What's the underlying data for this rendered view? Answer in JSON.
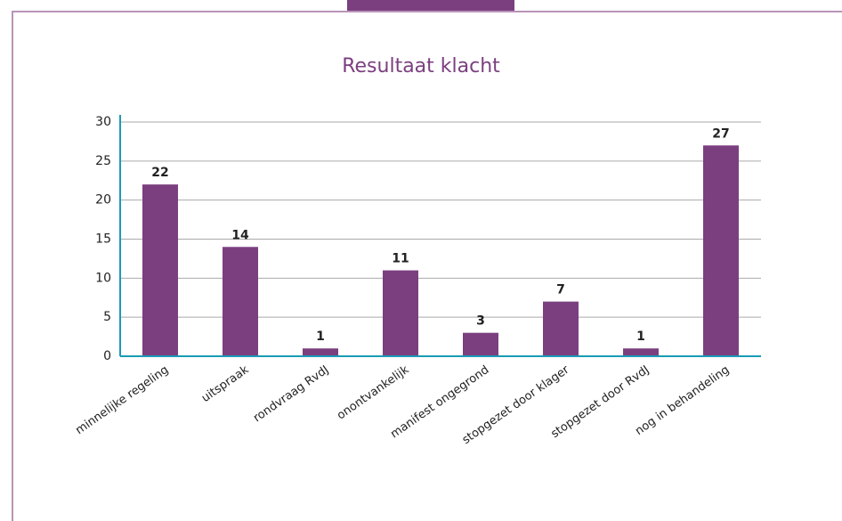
{
  "chart_data": {
    "type": "bar",
    "title": "Resultaat klacht",
    "categories": [
      "minnelijke regeling",
      "uitspraak",
      "rondvraag RvdJ",
      "onontvankelijk",
      "manifest ongegrond",
      "stopgezet door klager",
      "stopgezet door RvdJ",
      "nog in behandeling"
    ],
    "values": [
      22,
      14,
      1,
      11,
      3,
      7,
      1,
      27
    ],
    "color": "#7b3f7f",
    "ylim": [
      0,
      30
    ],
    "yticks": [
      0,
      5,
      10,
      15,
      20,
      25,
      30
    ],
    "grid": true
  }
}
